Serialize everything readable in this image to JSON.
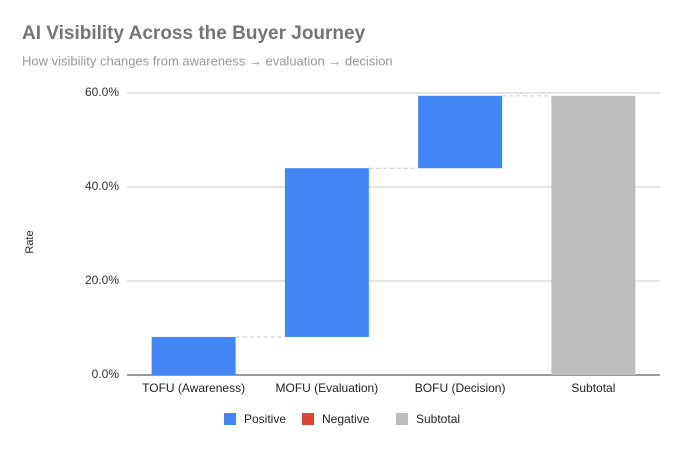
{
  "chart_data": {
    "type": "waterfall",
    "title": "AI Visibility Across the Buyer Journey",
    "subtitle": "How visibility changes from awareness → evaluation → decision",
    "y_label": "Rate",
    "categories": [
      "TOFU (Awareness)",
      "MOFU (Evaluation)",
      "BOFU (Decision)",
      "Subtotal"
    ],
    "values": [
      8.1,
      35.9,
      15.4,
      59.4
    ],
    "is_total": [
      false,
      false,
      false,
      true
    ],
    "legend": [
      {
        "name": "Positive",
        "color": "#4285f4"
      },
      {
        "name": "Negative",
        "color": "#db4437"
      },
      {
        "name": "Subtotal",
        "color": "#bdbdbd"
      }
    ],
    "ylim": [
      0,
      60
    ],
    "yticks": [
      {
        "value": 0,
        "label": "0.0%"
      },
      {
        "value": 20,
        "label": "20.0%"
      },
      {
        "value": 40,
        "label": "40.0%"
      },
      {
        "value": 60,
        "label": "60.0%"
      }
    ],
    "grid": true
  }
}
